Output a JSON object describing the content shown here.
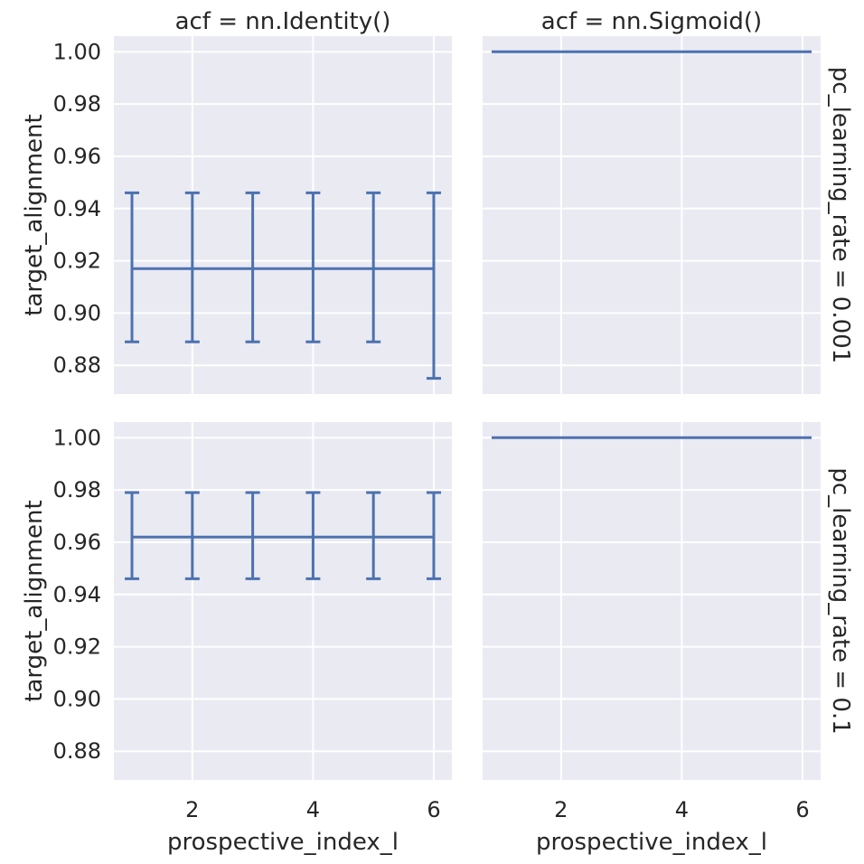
{
  "chart_data": {
    "type": "line",
    "facet_columns": [
      "acf = nn.Identity()",
      "acf = nn.Sigmoid()"
    ],
    "facet_rows": [
      "pc_learning_rate = 0.001",
      "pc_learning_rate = 0.1"
    ],
    "xlabel": "prospective_index_l",
    "ylabel": "target_alignment",
    "x_ticks": [
      2,
      4,
      6
    ],
    "y_ticks": [
      0.88,
      0.9,
      0.92,
      0.94,
      0.96,
      0.98,
      1.0
    ],
    "y_tick_labels": [
      "0.88",
      "0.90",
      "0.92",
      "0.94",
      "0.96",
      "0.98",
      "1.00"
    ],
    "xlim": [
      0.7,
      6.3
    ],
    "ylim": [
      0.869,
      1.006
    ],
    "grid": true,
    "series_color": "#4c72b0",
    "panels": [
      {
        "row": 0,
        "col": 0,
        "x": [
          1,
          2,
          3,
          4,
          5,
          6
        ],
        "y": [
          0.917,
          0.917,
          0.917,
          0.917,
          0.917,
          0.917
        ],
        "err_low": [
          0.889,
          0.889,
          0.889,
          0.889,
          0.889,
          0.875
        ],
        "err_high": [
          0.946,
          0.946,
          0.946,
          0.946,
          0.946,
          0.946
        ]
      },
      {
        "row": 0,
        "col": 1,
        "x": [
          0.85,
          6.15
        ],
        "y": [
          1.0,
          1.0
        ]
      },
      {
        "row": 1,
        "col": 0,
        "x": [
          1,
          2,
          3,
          4,
          5,
          6
        ],
        "y": [
          0.962,
          0.962,
          0.962,
          0.962,
          0.962,
          0.962
        ],
        "err_low": [
          0.946,
          0.946,
          0.946,
          0.946,
          0.946,
          0.946
        ],
        "err_high": [
          0.979,
          0.979,
          0.979,
          0.979,
          0.979,
          0.979
        ]
      },
      {
        "row": 1,
        "col": 1,
        "x": [
          0.85,
          6.15
        ],
        "y": [
          1.0,
          1.0
        ]
      }
    ]
  }
}
